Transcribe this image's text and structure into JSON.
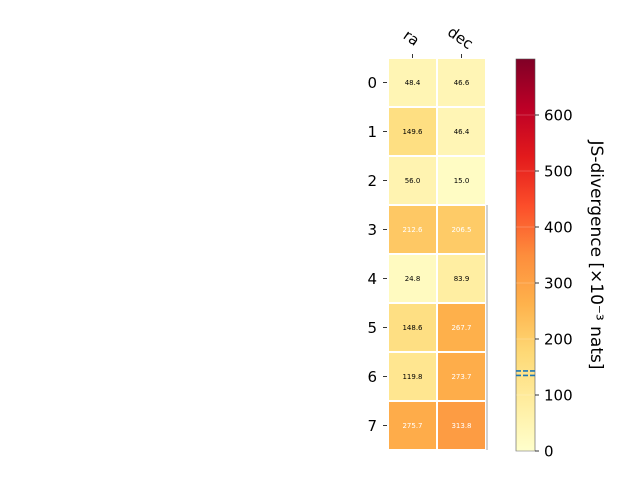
{
  "chart_data": {
    "type": "heatmap",
    "columns": [
      "ra",
      "dec"
    ],
    "rows": [
      "0",
      "1",
      "2",
      "3",
      "4",
      "5",
      "6",
      "7"
    ],
    "values": [
      [
        48.4,
        46.6
      ],
      [
        149.6,
        46.4
      ],
      [
        56.0,
        15.0
      ],
      [
        212.6,
        206.5
      ],
      [
        24.8,
        83.9
      ],
      [
        148.6,
        267.7
      ],
      [
        119.8,
        273.7
      ],
      [
        275.7,
        313.8
      ]
    ],
    "cell_labels": [
      [
        "48.4",
        "46.6"
      ],
      [
        "149.6",
        "46.4"
      ],
      [
        "56.0",
        "15.0"
      ],
      [
        "212.6",
        "206.5"
      ],
      [
        "24.8",
        "83.9"
      ],
      [
        "148.6",
        "267.7"
      ],
      [
        "119.8",
        "273.7"
      ],
      [
        "275.7",
        "313.8"
      ]
    ],
    "colorbar": {
      "label": "JS-divergence [×10⁻³ nats]",
      "range": [
        0,
        700
      ],
      "ticks": [
        0,
        100,
        200,
        300,
        400,
        500,
        600
      ],
      "tick_labels": [
        "0",
        "100",
        "200",
        "300",
        "400",
        "500",
        "600"
      ],
      "marker_values": [
        135,
        143
      ],
      "marker_color": "#1f77b4",
      "colormap": "YlOrRd"
    }
  }
}
